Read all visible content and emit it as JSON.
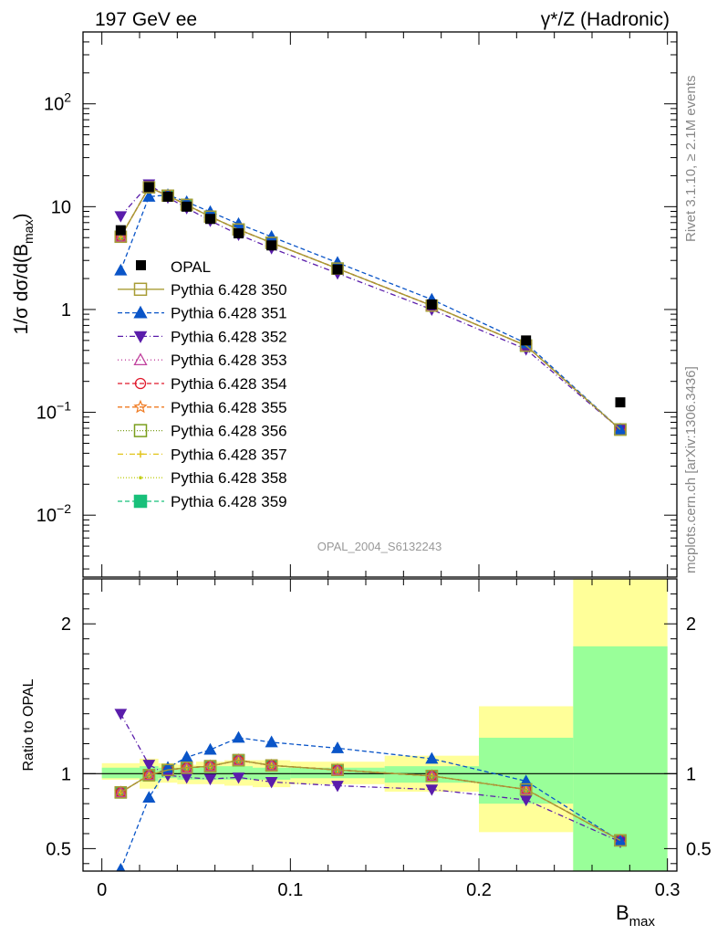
{
  "header": {
    "left_text": "197 GeV ee",
    "right_text": "γ*/Z (Hadronic)"
  },
  "side_labels": {
    "rivet": "Rivet 3.1.10, ≥ 2.1M events",
    "mcplots": "mcplots.cern.ch [arXiv:1306.3436]"
  },
  "analysis_id": "OPAL_2004_S6132243",
  "colors": {
    "data": "#000000",
    "band_yellow": "#ffff99",
    "band_green": "#99ff99",
    "s350": "#a89d36",
    "s351": "#0a55c8",
    "s352": "#5a1dab",
    "s353": "#c0409d",
    "s354": "#e0182b",
    "s355": "#ef7a21",
    "s356": "#7a9e1c",
    "s357": "#e2c41c",
    "s358": "#c3cf1c",
    "s359": "#18c07a"
  },
  "chart_data": [
    {
      "type": "line",
      "ylabel": "1/σ dσ/d(B",
      "ylabel_sub": "max",
      "ylabel_end": ")",
      "yscale": "log",
      "xlim": [
        -0.01,
        0.305
      ],
      "ylim": [
        0.0025,
        500
      ],
      "ytick_labels": [
        {
          "value": 0.01,
          "base": "10",
          "exp": "−2"
        },
        {
          "value": 0.1,
          "base": "10",
          "exp": "−1"
        },
        {
          "value": 1,
          "base": "1",
          "exp": ""
        },
        {
          "value": 10,
          "base": "10",
          "exp": ""
        },
        {
          "value": 100,
          "base": "10",
          "exp": "2"
        }
      ],
      "x": [
        0.01,
        0.025,
        0.035,
        0.045,
        0.0575,
        0.0725,
        0.09,
        0.125,
        0.175,
        0.225,
        0.275
      ],
      "data": {
        "name": "OPAL",
        "values": [
          5.9,
          15.5,
          12.5,
          10.0,
          7.6,
          5.5,
          4.2,
          2.45,
          1.12,
          0.5,
          0.125
        ]
      },
      "series": [
        {
          "name": "Pythia 6.428 350",
          "key": "s350",
          "marker": "square-open",
          "dash": "",
          "values": [
            5.1,
            15.4,
            12.8,
            10.4,
            8.0,
            6.0,
            4.45,
            2.5,
            1.09,
            0.445,
            0.068
          ]
        },
        {
          "name": "Pythia 6.428 351",
          "key": "s351",
          "marker": "triangle-up",
          "dash": "5,3",
          "values": [
            2.4,
            12.5,
            13.0,
            11.1,
            8.9,
            6.8,
            5.1,
            2.85,
            1.25,
            0.47,
            0.068
          ]
        },
        {
          "name": "Pythia 6.428 352",
          "key": "s352",
          "marker": "triangle-down",
          "dash": "6,3,1,3",
          "values": [
            8.1,
            16.5,
            12.3,
            9.7,
            7.3,
            5.35,
            3.95,
            2.25,
            1.0,
            0.41,
            0.068
          ]
        },
        {
          "name": "Pythia 6.428 353",
          "key": "s353",
          "marker": "triangle-open",
          "dash": "1,3",
          "values": [
            5.1,
            15.4,
            12.8,
            10.4,
            8.0,
            6.0,
            4.45,
            2.5,
            1.09,
            0.445,
            0.068
          ]
        },
        {
          "name": "Pythia 6.428 354",
          "key": "s354",
          "marker": "circle-open",
          "dash": "5,3",
          "values": [
            5.1,
            15.4,
            12.8,
            10.4,
            8.0,
            6.0,
            4.45,
            2.5,
            1.09,
            0.445,
            0.068
          ]
        },
        {
          "name": "Pythia 6.428 355",
          "key": "s355",
          "marker": "star-open",
          "dash": "5,3",
          "values": [
            5.1,
            15.4,
            12.8,
            10.4,
            8.0,
            6.0,
            4.45,
            2.5,
            1.09,
            0.445,
            0.068
          ]
        },
        {
          "name": "Pythia 6.428 356",
          "key": "s356",
          "marker": "square-open",
          "dash": "1,2",
          "values": [
            5.1,
            15.4,
            12.8,
            10.4,
            8.0,
            6.0,
            4.45,
            2.5,
            1.09,
            0.445,
            0.068
          ]
        },
        {
          "name": "Pythia 6.428 357",
          "key": "s357",
          "marker": "cross",
          "dash": "6,3,1,3",
          "values": [
            5.1,
            15.4,
            12.8,
            10.4,
            8.0,
            6.0,
            4.45,
            2.5,
            1.09,
            0.445,
            0.068
          ]
        },
        {
          "name": "Pythia 6.428 358",
          "key": "s358",
          "marker": "dot",
          "dash": "1,2",
          "values": [
            5.1,
            15.4,
            12.8,
            10.4,
            8.0,
            6.0,
            4.45,
            2.5,
            1.09,
            0.445,
            0.068
          ]
        },
        {
          "name": "Pythia 6.428 359",
          "key": "s359",
          "marker": "square-filled",
          "dash": "5,3",
          "values": [
            5.1,
            15.4,
            12.8,
            10.4,
            8.0,
            6.0,
            4.45,
            2.5,
            1.09,
            0.445,
            0.068
          ]
        }
      ]
    },
    {
      "type": "line",
      "ylabel": "Ratio to OPAL",
      "xlabel": "B",
      "xlabel_sub": "max",
      "xlim": [
        -0.01,
        0.305
      ],
      "ylim": [
        0.35,
        2.3
      ],
      "yticks": [
        0.5,
        1,
        2
      ],
      "ytick_labels": [
        "0.5",
        "1",
        "2"
      ],
      "xticks": [
        0,
        0.1,
        0.2,
        0.3
      ],
      "xtick_labels": [
        "0",
        "0.1",
        "0.2",
        "0.3"
      ],
      "bins": [
        [
          0,
          0.02
        ],
        [
          0.02,
          0.03
        ],
        [
          0.03,
          0.04
        ],
        [
          0.04,
          0.05
        ],
        [
          0.05,
          0.065
        ],
        [
          0.065,
          0.08
        ],
        [
          0.08,
          0.1
        ],
        [
          0.1,
          0.15
        ],
        [
          0.15,
          0.2
        ],
        [
          0.2,
          0.25
        ],
        [
          0.25,
          0.3
        ]
      ],
      "band_yellow": [
        [
          0.96,
          1.07
        ],
        [
          0.9,
          1.1
        ],
        [
          0.94,
          1.07
        ],
        [
          0.93,
          1.06
        ],
        [
          0.93,
          1.08
        ],
        [
          0.92,
          1.09
        ],
        [
          0.91,
          1.09
        ],
        [
          0.93,
          1.08
        ],
        [
          0.88,
          1.12
        ],
        [
          0.61,
          1.45
        ],
        [
          0.35,
          2.35
        ]
      ],
      "band_green": [
        [
          0.97,
          1.04
        ],
        [
          0.95,
          1.05
        ],
        [
          0.97,
          1.04
        ],
        [
          0.96,
          1.04
        ],
        [
          0.96,
          1.05
        ],
        [
          0.96,
          1.05
        ],
        [
          0.96,
          1.04
        ],
        [
          0.97,
          1.04
        ],
        [
          0.94,
          1.05
        ],
        [
          0.8,
          1.24
        ],
        [
          0.35,
          1.85
        ]
      ],
      "x": [
        0.01,
        0.025,
        0.035,
        0.045,
        0.0575,
        0.0725,
        0.09,
        0.125,
        0.175,
        0.225,
        0.275
      ],
      "series": [
        {
          "key": "s350",
          "marker": "square-open",
          "dash": "",
          "values": [
            0.875,
            0.99,
            1.025,
            1.04,
            1.05,
            1.09,
            1.055,
            1.025,
            0.985,
            0.895,
            0.555
          ]
        },
        {
          "key": "s351",
          "marker": "triangle-up",
          "dash": "5,3",
          "values": [
            0.36,
            0.84,
            1.04,
            1.11,
            1.16,
            1.24,
            1.21,
            1.17,
            1.1,
            0.95,
            0.55
          ]
        },
        {
          "key": "s352",
          "marker": "triangle-down",
          "dash": "6,3,1,3",
          "values": [
            1.4,
            1.06,
            0.99,
            0.975,
            0.965,
            0.975,
            0.945,
            0.92,
            0.895,
            0.825,
            0.545
          ]
        },
        {
          "key": "s353",
          "marker": "triangle-open",
          "dash": "1,3",
          "values": [
            0.875,
            0.99,
            1.025,
            1.04,
            1.05,
            1.09,
            1.055,
            1.025,
            0.985,
            0.895,
            0.555
          ]
        },
        {
          "key": "s354",
          "marker": "circle-open",
          "dash": "5,3",
          "values": [
            0.875,
            0.99,
            1.025,
            1.04,
            1.05,
            1.09,
            1.055,
            1.025,
            0.985,
            0.895,
            0.555
          ]
        },
        {
          "key": "s355",
          "marker": "star-open",
          "dash": "5,3",
          "values": [
            0.875,
            0.99,
            1.025,
            1.04,
            1.05,
            1.09,
            1.055,
            1.025,
            0.985,
            0.895,
            0.555
          ]
        },
        {
          "key": "s356",
          "marker": "square-open",
          "dash": "1,2",
          "values": [
            0.875,
            0.99,
            1.025,
            1.04,
            1.05,
            1.09,
            1.055,
            1.025,
            0.985,
            0.895,
            0.555
          ]
        },
        {
          "key": "s357",
          "marker": "cross",
          "dash": "6,3,1,3",
          "values": [
            0.875,
            0.99,
            1.025,
            1.04,
            1.05,
            1.09,
            1.055,
            1.025,
            0.985,
            0.895,
            0.555
          ]
        },
        {
          "key": "s358",
          "marker": "dot",
          "dash": "1,2",
          "values": [
            0.875,
            0.99,
            1.025,
            1.04,
            1.05,
            1.09,
            1.055,
            1.025,
            0.985,
            0.895,
            0.555
          ]
        },
        {
          "key": "s359",
          "marker": "square-filled",
          "dash": "5,3",
          "values": [
            0.875,
            0.99,
            1.025,
            1.04,
            1.05,
            1.09,
            1.055,
            1.025,
            0.985,
            0.895,
            0.555
          ]
        }
      ]
    }
  ]
}
